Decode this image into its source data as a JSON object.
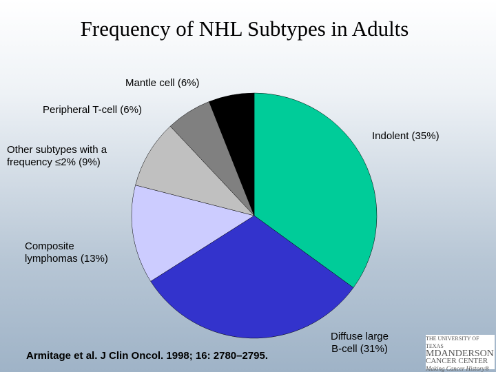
{
  "chart_data": {
    "type": "pie",
    "title": "Frequency of NHL Subtypes in Adults",
    "categories": [
      "Indolent (35%)",
      "Diffuse large\nB-cell (31%)",
      "Composite\nlymphomas (13%)",
      "Other subtypes with a\nfrequency ≤2% (9%)",
      "Peripheral T-cell (6%)",
      "Mantle cell (6%)"
    ],
    "values": [
      35,
      31,
      13,
      9,
      6,
      6
    ],
    "colors": [
      "#00cc99",
      "#3333cc",
      "#ccccff",
      "#c0c0c0",
      "#808080",
      "#000000"
    ],
    "annotation": "Armitage et al. J Clin Oncol. 1998; 16: 2780–2795."
  },
  "logo": {
    "lines": [
      "THE UNIVERSITY OF TEXAS",
      "MDANDERSON",
      "CANCER CENTER",
      "Making Cancer History®"
    ]
  }
}
